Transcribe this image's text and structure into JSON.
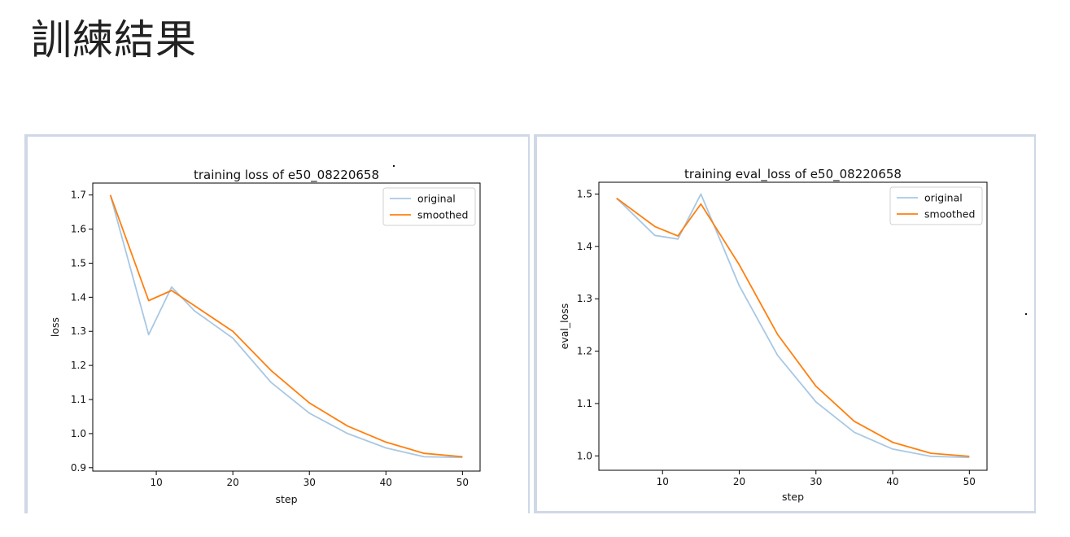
{
  "page": {
    "heading": "訓練結果"
  },
  "colors": {
    "original": "#a8c8e4",
    "smoothed": "#ff7f0e",
    "axis": "#000000",
    "legend_border": "#d0d0d0"
  },
  "chart_data": [
    {
      "type": "line",
      "title": "training loss of e50_08220658",
      "xlabel": "step",
      "ylabel": "loss",
      "xlim": [
        1.7,
        52.3
      ],
      "ylim": [
        0.89,
        1.735
      ],
      "xticks": [
        10,
        20,
        30,
        40,
        50
      ],
      "xtick_labels": [
        "10",
        "20",
        "30",
        "40",
        "50"
      ],
      "yticks": [
        0.9,
        1.0,
        1.1,
        1.2,
        1.3,
        1.4,
        1.5,
        1.6,
        1.7
      ],
      "ytick_labels": [
        "0.9",
        "1.0",
        "1.1",
        "1.2",
        "1.3",
        "1.4",
        "1.5",
        "1.6",
        "1.7"
      ],
      "grid": false,
      "legend_position": "top-right",
      "x": [
        4,
        9,
        12,
        15,
        20,
        25,
        30,
        35,
        40,
        45,
        50
      ],
      "series": [
        {
          "name": "original",
          "values": [
            1.7,
            1.29,
            1.43,
            1.36,
            1.28,
            1.15,
            1.06,
            1.0,
            0.958,
            0.932,
            0.93
          ]
        },
        {
          "name": "smoothed",
          "values": [
            1.7,
            1.39,
            1.42,
            1.375,
            1.3,
            1.185,
            1.09,
            1.022,
            0.975,
            0.942,
            0.932
          ]
        }
      ]
    },
    {
      "type": "line",
      "title": "training eval_loss of e50_08220658",
      "xlabel": "step",
      "ylabel": "eval_loss",
      "xlim": [
        1.7,
        52.3
      ],
      "ylim": [
        0.9725,
        1.5225
      ],
      "xticks": [
        10,
        20,
        30,
        40,
        50
      ],
      "xtick_labels": [
        "10",
        "20",
        "30",
        "40",
        "50"
      ],
      "yticks": [
        1.0,
        1.1,
        1.2,
        1.3,
        1.4,
        1.5
      ],
      "ytick_labels": [
        "1.0",
        "1.1",
        "1.2",
        "1.3",
        "1.4",
        "1.5"
      ],
      "grid": false,
      "legend_position": "top-right",
      "x": [
        4,
        9,
        12,
        15,
        20,
        25,
        30,
        35,
        40,
        45,
        50
      ],
      "series": [
        {
          "name": "original",
          "values": [
            1.492,
            1.421,
            1.414,
            1.5,
            1.325,
            1.192,
            1.103,
            1.045,
            1.013,
            0.999,
            0.997
          ]
        },
        {
          "name": "smoothed",
          "values": [
            1.492,
            1.438,
            1.42,
            1.481,
            1.365,
            1.232,
            1.133,
            1.066,
            1.026,
            1.005,
            0.999
          ]
        }
      ]
    }
  ]
}
